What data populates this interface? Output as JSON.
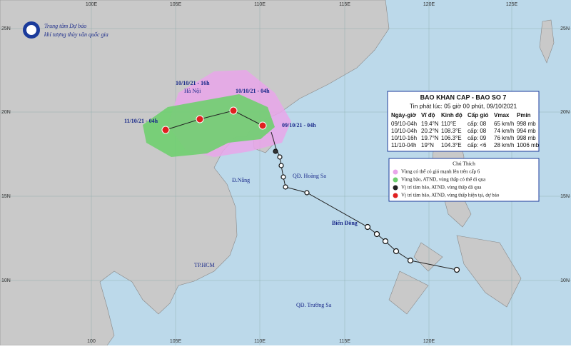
{
  "header": {
    "line1": "Trung tâm Dự báo",
    "line2": "khí tượng thủy văn quốc gia"
  },
  "grid": {
    "top": [
      "100E",
      "105E",
      "110E",
      "115E",
      "120E",
      "125E"
    ],
    "bottom": [
      "100",
      "105E",
      "110E",
      "115E",
      "120E"
    ],
    "left": [
      "25N",
      "20N",
      "15N",
      "10N"
    ],
    "right": [
      "25N",
      "20N",
      "15N",
      "10N"
    ]
  },
  "bulletin": {
    "title": "BAO KHAN CAP - BAO SO 7",
    "issued": "Tin phát lúc: 05 giờ 00 phút, 09/10/2021",
    "columns": [
      "Ngày-giờ",
      "Vĩ độ",
      "Kinh độ",
      "Cấp gió",
      "Vmax",
      "Pmin"
    ],
    "rows": [
      [
        "09/10-04h",
        "19.4°N",
        "110°E",
        "cấp: 08",
        "65 km/h",
        "998 mb"
      ],
      [
        "10/10-04h",
        "20.2°N",
        "108.3°E",
        "cấp: 08",
        "74 km/h",
        "994 mb"
      ],
      [
        "10/10-16h",
        "19.7°N",
        "106.3°E",
        "cấp: 09",
        "76 km/h",
        "998 mb"
      ],
      [
        "11/10-04h",
        "19°N",
        "104.3°E",
        "cấp: <6",
        "28 km/h",
        "1006 mb"
      ]
    ]
  },
  "legend": {
    "title": "Chú Thích",
    "items": [
      "Vùng có thể có gió mạnh lên trên cấp 6",
      "Vùng bão, ATND, vùng thấp có thể đi qua",
      "Vị trí tâm bão, ATND, vùng thấp đã qua",
      "Vị trí tâm bão, ATND, vùng thấp hiện tại, dự báo"
    ]
  },
  "places": [
    "Hà Nội",
    "Đ.Nẵng",
    "QĐ. Hoàng Sa",
    "Biển Đông",
    "TP.HCM",
    "QĐ. Trường Sa"
  ],
  "track_labels": [
    "10/10/21 - 16h",
    "10/10/21 - 04h",
    "11/10/21 - 04h",
    "09/10/21 - 04h"
  ]
}
